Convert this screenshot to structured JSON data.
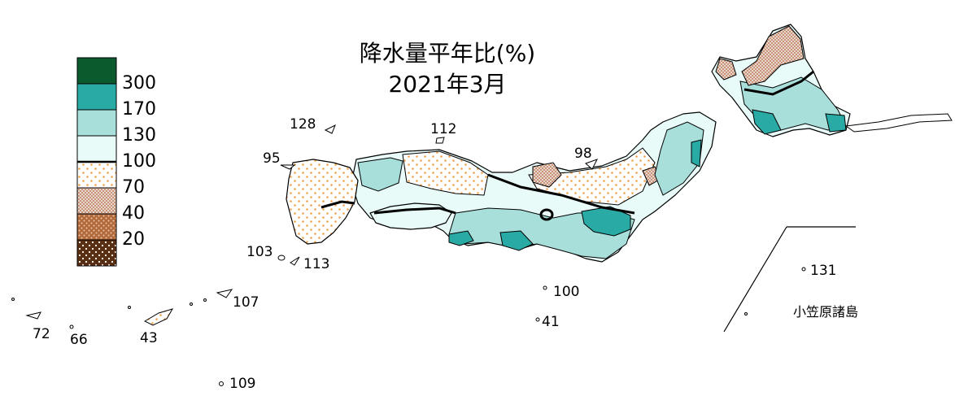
{
  "title": {
    "line1": "降水量平年比(%)",
    "line2": "2021年3月"
  },
  "legend": {
    "thresholds": [
      "300",
      "170",
      "130",
      "100",
      "70",
      "40",
      "20"
    ],
    "classes": [
      {
        "range": "300+",
        "color": "#0b5a2e",
        "pattern": "solid"
      },
      {
        "range": "170-300",
        "color": "#2aaaa4",
        "pattern": "solid"
      },
      {
        "range": "130-170",
        "color": "#a9dfdb",
        "pattern": "solid"
      },
      {
        "range": "100-130",
        "color": "#e8fbf9",
        "pattern": "solid"
      },
      {
        "range": "70-100",
        "color": "#f2a24c",
        "pattern": "sparse-dots"
      },
      {
        "range": "40-70",
        "color": "#cf9a7c",
        "pattern": "dense-dots"
      },
      {
        "range": "20-40",
        "color": "#b36a3a",
        "pattern": "dots"
      },
      {
        "range": "<20",
        "color": "#5a2e12",
        "pattern": "white-dots"
      }
    ]
  },
  "island_values": {
    "v128": "128",
    "v95": "95",
    "v112": "112",
    "v98": "98",
    "v103": "103",
    "v113": "113",
    "v107": "107",
    "v72": "72",
    "v66": "66",
    "v43": "43",
    "v109": "109",
    "v100": "100",
    "v41": "41",
    "v131": "131"
  },
  "inset_label": "小笠原諸島"
}
